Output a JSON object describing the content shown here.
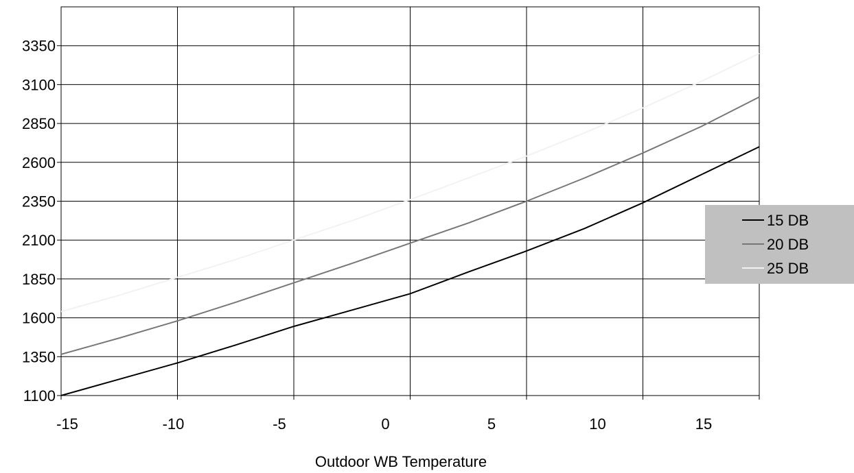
{
  "chart_data": {
    "type": "line",
    "title": "",
    "xlabel": "Outdoor WB Temperature",
    "ylabel": "",
    "xlim": [
      -15,
      15
    ],
    "ylim": [
      1100,
      3600
    ],
    "x_ticks": [
      -15,
      -10,
      -5,
      0,
      5,
      10,
      15
    ],
    "x_tick_labels": [
      "-15",
      "-10",
      "-5",
      "0",
      "5",
      "10",
      "15"
    ],
    "y_ticks": [
      1100,
      1350,
      1600,
      1850,
      2100,
      2350,
      2600,
      2850,
      3100,
      3350
    ],
    "y_tick_labels": [
      "1100",
      "1350",
      "1600",
      "1850",
      "2100",
      "2350",
      "2600",
      "2850",
      "3100",
      "3350"
    ],
    "grid": true,
    "legend_position": "right",
    "x": [
      -15,
      -12.5,
      -10,
      -7.5,
      -5,
      -2.5,
      0,
      2.5,
      5,
      7.5,
      10,
      12.5,
      15
    ],
    "series": [
      {
        "name": "15 DB",
        "color": "#000000",
        "values": [
          1100,
          1205,
          1310,
          1425,
          1545,
          1650,
          1755,
          1895,
          2030,
          2175,
          2340,
          2520,
          2700
        ]
      },
      {
        "name": "20 DB",
        "color": "#777777",
        "values": [
          1365,
          1470,
          1580,
          1700,
          1825,
          1950,
          2080,
          2210,
          2350,
          2500,
          2660,
          2830,
          3020
        ]
      },
      {
        "name": "25 DB",
        "color": "#f2f2f2",
        "values": [
          1640,
          1745,
          1860,
          1975,
          2100,
          2225,
          2360,
          2500,
          2640,
          2790,
          2950,
          3120,
          3300
        ]
      }
    ]
  }
}
